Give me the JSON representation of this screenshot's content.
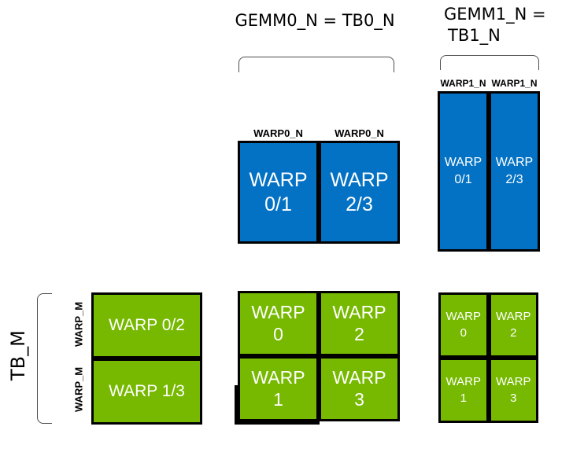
{
  "colors": {
    "blue": "#0472c4",
    "green": "#76b900",
    "border": "#000000",
    "box_text": "#ffffff",
    "label_text": "#000000",
    "bracket": "#4d4d4d"
  },
  "labels": {
    "gemm0_title": "GEMM0_N = TB0_N",
    "gemm1_title_line1": "GEMM1_N =",
    "gemm1_title_line2": "TB1_N",
    "tb_m": "TB_M",
    "warp_m": [
      "WARP_M",
      "WARP_M"
    ],
    "warp0_n": [
      "WARP0_N",
      "WARP0_N"
    ],
    "warp1_n": [
      "WARP1_N",
      "WARP1_N"
    ]
  },
  "boxes": {
    "gemm0_accumulators": {
      "color": "blue",
      "cells": [
        {
          "line1": "WARP",
          "line2": "0/1"
        },
        {
          "line1": "WARP",
          "line2": "2/3"
        }
      ]
    },
    "gemm1_accumulators": {
      "color": "blue",
      "cells": [
        {
          "line1": "WARP",
          "line2": "0/1"
        },
        {
          "line1": "WARP",
          "line2": "2/3"
        }
      ]
    },
    "threadblock_tile_left": {
      "color": "green",
      "cells": [
        {
          "label": "WARP 0/2"
        },
        {
          "label": "WARP 1/3"
        }
      ]
    },
    "warp_tiles_center": {
      "color": "green",
      "cells": [
        {
          "line1": "WARP",
          "line2": "0"
        },
        {
          "line1": "WARP",
          "line2": "2"
        },
        {
          "line1": "WARP",
          "line2": "1"
        },
        {
          "line1": "WARP",
          "line2": "3"
        }
      ]
    },
    "warp_tiles_right": {
      "color": "green",
      "cells": [
        {
          "line1": "WARP",
          "line2": "0"
        },
        {
          "line1": "WARP",
          "line2": "2"
        },
        {
          "line1": "WARP",
          "line2": "1"
        },
        {
          "line1": "WARP",
          "line2": "3"
        }
      ]
    }
  }
}
